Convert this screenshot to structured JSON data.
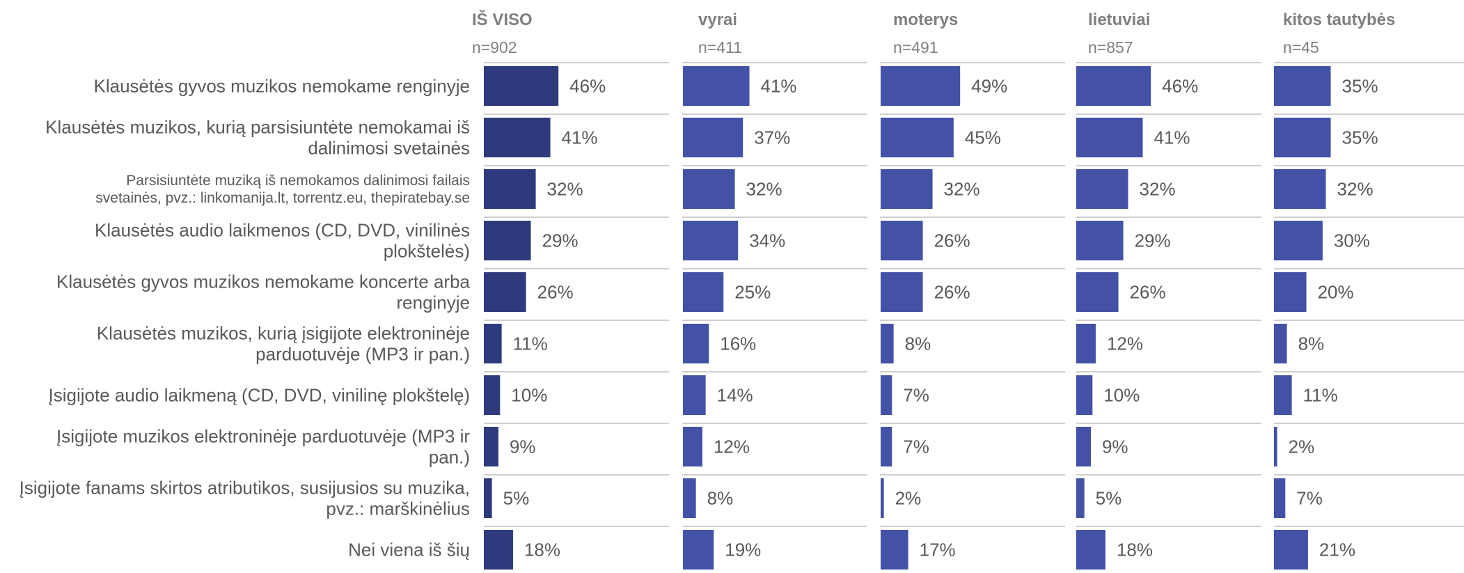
{
  "chart_data": {
    "type": "bar",
    "orientation": "horizontal",
    "grid": false,
    "colors": {
      "first_series": "#2e3a7c",
      "other_series": "#4352a6",
      "text": "#595959",
      "header": "#7f7f7f",
      "divider": "#bfbfbf"
    },
    "categories": [
      "Klausėtės gyvos muzikos nemokame renginyje",
      "Klausėtės muzikos, kurią parsisiuntėte nemokamai iš dalinimosi svetainės",
      "Parsisiuntėte muziką iš nemokamos dalinimosi failais svetainės, pvz.: linkomanija.lt, torrentz.eu, thepiratebay.se",
      "Klausėtės audio laikmenos (CD, DVD, vinilinės plokštelės)",
      "Klausėtės gyvos muzikos nemokame koncerte arba renginyje",
      "Klausėtės muzikos, kurią įsigijote elektroninėje parduotuvėje (MP3 ir pan.)",
      "Įsigijote audio laikmeną (CD, DVD, vinilinę plokštelę)",
      "Įsigijote muzikos elektroninėje parduotuvėje (MP3 ir pan.)",
      "Įsigijote fanams skirtos atributikos, susijusios su muzika, pvz.: marškinėlius",
      "Nei viena iš šių"
    ],
    "category_lines": [
      [
        "Klausėtės gyvos muzikos nemokame renginyje"
      ],
      [
        "Klausėtės muzikos, kurią parsisiuntėte nemokamai iš",
        "dalinimosi svetainės"
      ],
      [
        "Parsisiuntėte muziką iš nemokamos dalinimosi failais",
        "svetainės, pvz.: linkomanija.lt, torrentz.eu, thepiratebay.se"
      ],
      [
        "Klausėtės audio laikmenos (CD, DVD, vinilinės",
        "plokštelės)"
      ],
      [
        "Klausėtės gyvos muzikos nemokame koncerte arba",
        "renginyje"
      ],
      [
        "Klausėtės muzikos, kurią įsigijote elektroninėje",
        "parduotuvėje (MP3 ir pan.)"
      ],
      [
        "Įsigijote audio laikmeną (CD, DVD, vinilinę plokštelę)"
      ],
      [
        "Įsigijote muzikos elektroninėje parduotuvėje (MP3 ir",
        "pan.)"
      ],
      [
        "Įsigijote fanams skirtos atributikos, susijusios su muzika,",
        "pvz.: marškinėlius"
      ],
      [
        "Nei viena iš šių"
      ]
    ],
    "value_suffix": "%",
    "series": [
      {
        "name": "IŠ VISO",
        "n": "n=902",
        "values": [
          46,
          41,
          32,
          29,
          26,
          11,
          10,
          9,
          5,
          18
        ]
      },
      {
        "name": "vyrai",
        "n": "n=411",
        "values": [
          41,
          37,
          32,
          34,
          25,
          16,
          14,
          12,
          8,
          19
        ]
      },
      {
        "name": "moterys",
        "n": "n=491",
        "values": [
          49,
          45,
          32,
          26,
          26,
          8,
          7,
          7,
          2,
          17
        ]
      },
      {
        "name": "lietuviai",
        "n": "n=857",
        "values": [
          46,
          41,
          32,
          29,
          26,
          12,
          10,
          9,
          5,
          18
        ]
      },
      {
        "name": "kitos tautybės",
        "n": "n=45",
        "values": [
          35,
          35,
          32,
          30,
          20,
          8,
          11,
          2,
          7,
          21
        ]
      }
    ]
  }
}
